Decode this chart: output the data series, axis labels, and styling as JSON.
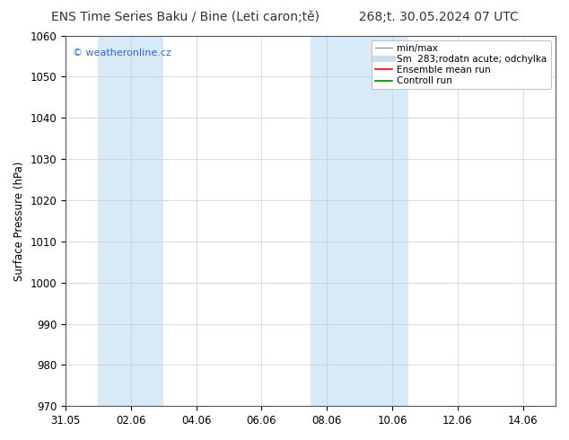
{
  "title_left": "ENS Time Series Baku / Bine (Leti caron;tě)",
  "title_right": "268;t. 30.05.2024 07 UTC",
  "ylabel": "Surface Pressure (hPa)",
  "ylim": [
    970,
    1060
  ],
  "yticks": [
    970,
    980,
    990,
    1000,
    1010,
    1020,
    1030,
    1040,
    1050,
    1060
  ],
  "xtick_labels": [
    "31.05",
    "02.06",
    "04.06",
    "06.06",
    "08.06",
    "10.06",
    "12.06",
    "14.06"
  ],
  "xtick_positions": [
    0,
    2,
    4,
    6,
    8,
    10,
    12,
    14
  ],
  "xlim": [
    0,
    15
  ],
  "shaded_bands": [
    {
      "x_start": 1.0,
      "x_end": 3.0,
      "color": "#d8eaf8"
    },
    {
      "x_start": 7.5,
      "x_end": 8.5,
      "color": "#d8eaf8"
    },
    {
      "x_start": 8.5,
      "x_end": 10.5,
      "color": "#d8eaf8"
    }
  ],
  "watermark": "© weatheronline.cz",
  "watermark_color": "#3366cc",
  "watermark_fontsize": 8,
  "legend_items": [
    {
      "label": "min/max",
      "color": "#999999",
      "lw": 1.0,
      "style": "-"
    },
    {
      "label": "Sm  283;rodatn acute; odchylka",
      "color": "#c8ddef",
      "lw": 5,
      "style": "-"
    },
    {
      "label": "Ensemble mean run",
      "color": "red",
      "lw": 1.2,
      "style": "-"
    },
    {
      "label": "Controll run",
      "color": "green",
      "lw": 1.2,
      "style": "-"
    }
  ],
  "background_color": "#ffffff",
  "plot_bg_color": "#ffffff",
  "grid_color": "#cccccc",
  "title_fontsize": 10,
  "axis_label_fontsize": 8.5,
  "tick_fontsize": 8.5,
  "legend_fontsize": 7.5
}
